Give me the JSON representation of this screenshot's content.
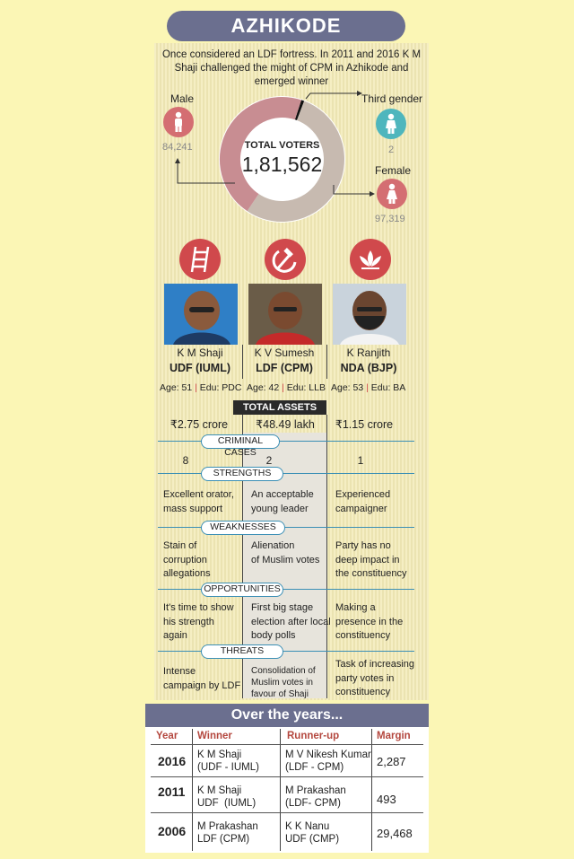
{
  "title": "AZHIKODE",
  "intro": "Once considered an LDF fortress. In 2011 and 2016 K M Shaji challenged the might of CPM in Azhikode and emerged winner",
  "voters": {
    "label": "TOTAL VOTERS",
    "total": "1,81,562",
    "male": {
      "label": "Male",
      "value": "84,241",
      "count": 84241
    },
    "female": {
      "label": "Female",
      "value": "97,319",
      "count": 97319
    },
    "third": {
      "label": "Third gender",
      "value": "2",
      "count": 2
    },
    "colors": {
      "male": "#c88d92",
      "female": "#c7bab0",
      "third": "#111111"
    }
  },
  "symbols": [
    "ladder-icon",
    "hammer-sickle-icon",
    "lotus-icon"
  ],
  "candidates": [
    {
      "name": "K M Shaji",
      "party": "UDF (IUML)",
      "age_label": "Age: 51",
      "edu_label": "Edu: PDC",
      "assets": "₹2.75 crore",
      "cases": "8",
      "strengths": "Excellent orator,\nmass support",
      "weaknesses": "Stain of\ncorruption\nallegations",
      "opportunities": "It's time to show\nhis strength\nagain",
      "threats": "Intense\ncampaign by LDF"
    },
    {
      "name": "K V Sumesh",
      "party": "LDF (CPM)",
      "age_label": "Age: 42",
      "edu_label": "Edu: LLB",
      "assets": "₹48.49 lakh",
      "cases": "2",
      "strengths": "An acceptable\nyoung leader",
      "weaknesses": "Alienation\nof Muslim votes",
      "opportunities": "First big stage\nelection after local\nbody polls",
      "threats": "Consolidation of\nMuslim votes in\nfavour of Shaji"
    },
    {
      "name": "K Ranjith",
      "party": "NDA (BJP)",
      "age_label": "Age: 53",
      "edu_label": "Edu: BA",
      "assets": "₹1.15 crore",
      "cases": "1",
      "strengths": "Experienced\ncampaigner",
      "weaknesses": "Party has no\ndeep impact in\nthe constituency",
      "opportunities": "Making a\npresence in the\nconstituency",
      "threats": "Task of increasing\nparty votes in\nconstituency"
    }
  ],
  "sections": {
    "assets": "TOTAL ASSETS",
    "cases": "CRIMINAL CASES",
    "strengths": "STRENGTHS",
    "weaknesses": "WEAKNESSES",
    "opportunities": "OPPORTUNITIES",
    "threats": "THREATS"
  },
  "history": {
    "heading": "Over the years...",
    "columns": [
      "Year",
      "Winner",
      "Runner-up",
      "Margin"
    ],
    "rows": [
      {
        "year": "2016",
        "winner": "K M Shaji\n(UDF - IUML)",
        "runner": "M V Nikesh Kumar\n(LDF - CPM)",
        "margin": "2,287"
      },
      {
        "year": "2011",
        "winner": "K M Shaji\nUDF  (IUML)",
        "runner": "M Prakashan\n(LDF- CPM)",
        "margin": "493"
      },
      {
        "year": "2006",
        "winner": "M Prakashan\nLDF (CPM)",
        "runner": "K K Nanu\nUDF (CMP)",
        "margin": "29,468"
      }
    ]
  }
}
